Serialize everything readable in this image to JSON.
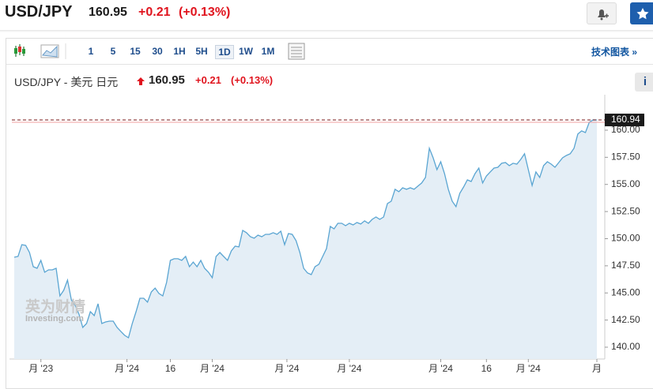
{
  "header": {
    "symbol": "USD/JPY",
    "price": "160.95",
    "change": "+0.21",
    "change_pct": "(+0.13%)"
  },
  "toolbar": {
    "intervals": [
      "1",
      "5",
      "15",
      "30",
      "1H",
      "5H",
      "1D",
      "1W",
      "1M"
    ],
    "link": "技术图表 »"
  },
  "legend": {
    "name": "USD/JPY - 美元 日元",
    "price": "160.95",
    "change": "+0.21",
    "change_pct": "(+0.13%)"
  },
  "watermark": [
    "英为财情",
    "Investing.com"
  ],
  "chart_data": {
    "type": "area",
    "color": "#5aa5d2",
    "fill": "#e4eef6",
    "last_price": 160.94,
    "values": [
      148.29,
      148.36,
      149.45,
      149.38,
      148.73,
      147.42,
      147.27,
      148.0,
      146.91,
      147.13,
      147.13,
      147.27,
      144.73,
      145.24,
      146.18,
      144.36,
      143.85,
      143.05,
      141.82,
      142.18,
      143.27,
      142.91,
      144.0,
      142.18,
      142.33,
      142.4,
      142.4,
      141.82,
      141.45,
      141.09,
      140.87,
      142.18,
      143.27,
      144.51,
      144.51,
      144.15,
      145.09,
      145.45,
      144.95,
      144.73,
      145.96,
      148.0,
      148.15,
      148.15,
      148.0,
      148.36,
      147.42,
      147.85,
      147.42,
      148.0,
      147.27,
      146.91,
      146.4,
      148.36,
      148.73,
      148.36,
      148.0,
      148.87,
      149.31,
      149.24,
      150.76,
      150.55,
      150.18,
      150.04,
      150.33,
      150.18,
      150.4,
      150.4,
      150.55,
      150.4,
      150.69,
      149.45,
      150.47,
      150.4,
      149.82,
      148.73,
      147.27,
      146.84,
      146.69,
      147.42,
      147.64,
      148.36,
      149.09,
      151.13,
      150.91,
      151.42,
      151.42,
      151.2,
      151.42,
      151.27,
      151.49,
      151.35,
      151.64,
      151.42,
      151.78,
      152.0,
      151.78,
      152.0,
      153.24,
      153.45,
      154.55,
      154.33,
      154.69,
      154.55,
      154.69,
      154.55,
      154.84,
      155.13,
      155.64,
      158.33,
      157.45,
      156.36,
      157.09,
      156.0,
      154.55,
      153.45,
      152.95,
      154.18,
      154.76,
      155.42,
      155.27,
      156.0,
      156.51,
      155.13,
      155.78,
      156.15,
      156.51,
      156.58,
      156.95,
      157.02,
      156.73,
      156.95,
      156.87,
      157.31,
      157.82,
      156.36,
      154.91,
      156.15,
      155.64,
      156.73,
      157.09,
      156.87,
      156.58,
      157.02,
      157.45,
      157.67,
      157.82,
      158.33,
      159.64,
      159.93,
      159.78,
      160.73,
      160.95,
      160.94
    ],
    "xlim": [
      0,
      153
    ],
    "xticks": [
      {
        "value": 7,
        "label": "月 '23"
      },
      {
        "value": 29.6,
        "label": "月 '24"
      },
      {
        "value": 41,
        "label": "16"
      },
      {
        "value": 52,
        "label": "月 '24"
      },
      {
        "value": 71.6,
        "label": "月 '24"
      },
      {
        "value": 88,
        "label": "月 '24"
      },
      {
        "value": 112,
        "label": "月 '24"
      },
      {
        "value": 124,
        "label": "16"
      },
      {
        "value": 135,
        "label": "月 '24"
      },
      {
        "value": 153,
        "label": "月"
      }
    ],
    "ylim": [
      138.91,
      163.27
    ],
    "yticks": [
      {
        "value": 140,
        "label": "140.00"
      },
      {
        "value": 142.5,
        "label": "142.50"
      },
      {
        "value": 145,
        "label": "145.00"
      },
      {
        "value": 147.5,
        "label": "147.50"
      },
      {
        "value": 150,
        "label": "150.00"
      },
      {
        "value": 152.5,
        "label": "152.50"
      },
      {
        "value": 155,
        "label": "155.00"
      },
      {
        "value": 157.5,
        "label": "157.50"
      },
      {
        "value": 160,
        "label": "160.00"
      }
    ]
  }
}
